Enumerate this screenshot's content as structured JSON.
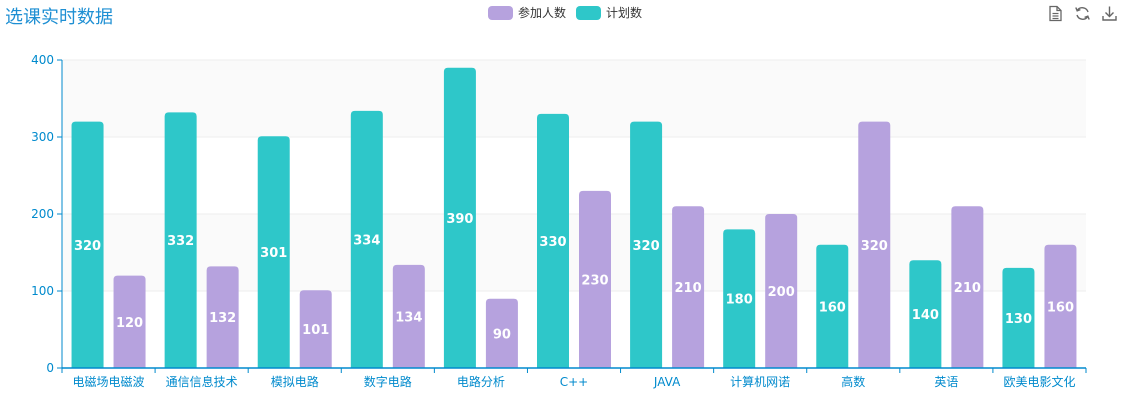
{
  "title": "选课实时数据",
  "legend": [
    {
      "name": "参加人数",
      "color": "#b6a2de"
    },
    {
      "name": "计划数",
      "color": "#2ec7c9"
    }
  ],
  "toolbox": {
    "icons": [
      "data-view-icon",
      "refresh-icon",
      "download-icon"
    ]
  },
  "chart_data": {
    "type": "bar",
    "categories": [
      "电磁场电磁波",
      "通信信息技术",
      "模拟电路",
      "数字电路",
      "电路分析",
      "C++",
      "JAVA",
      "计算机网诺",
      "高数",
      "英语",
      "欧美电影文化"
    ],
    "series": [
      {
        "name": "计划数",
        "color": "#2ec7c9",
        "values": [
          320,
          332,
          301,
          334,
          390,
          330,
          320,
          180,
          160,
          140,
          130
        ]
      },
      {
        "name": "参加人数",
        "color": "#b6a2de",
        "values": [
          120,
          132,
          101,
          134,
          90,
          230,
          210,
          200,
          320,
          210,
          160
        ]
      }
    ],
    "yticks": [
      0,
      100,
      200,
      300,
      400
    ],
    "ylim": [
      0,
      400
    ],
    "grid": true,
    "legend_position": "top-center"
  }
}
